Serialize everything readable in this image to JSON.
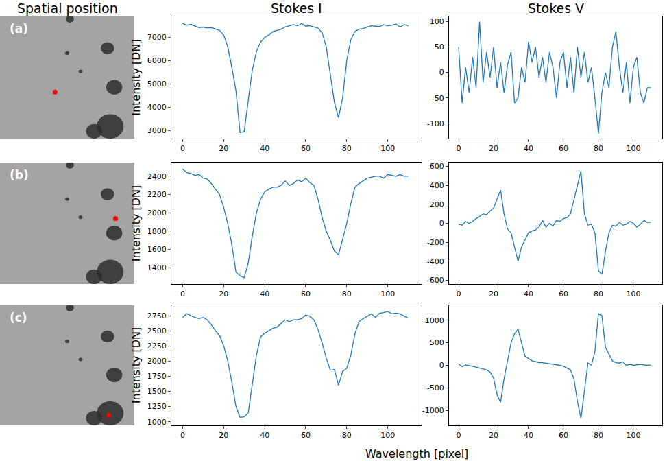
{
  "headers": [
    "Spatial position",
    "Stokes I",
    "Stokes V"
  ],
  "x_label": "Wavelength [pixel]",
  "spatial_panels": [
    {
      "label": "(a)",
      "point": {
        "x": 0.41,
        "y": 0.38
      },
      "color": "red"
    },
    {
      "label": "(b)",
      "point": {
        "x": 0.86,
        "y": 0.54
      },
      "color": "red"
    },
    {
      "label": "(c)",
      "point": {
        "x": 0.81,
        "y": 0.085
      },
      "color": "red"
    }
  ],
  "chart_data": [
    {
      "type": "line",
      "ylabel": "Intensity [DN]",
      "color": "#1f77b4",
      "x": [
        0,
        2,
        4,
        6,
        8,
        10,
        12,
        14,
        16,
        18,
        20,
        22,
        24,
        26,
        28,
        30,
        32,
        34,
        36,
        38,
        40,
        42,
        44,
        46,
        48,
        50,
        52,
        54,
        56,
        58,
        60,
        62,
        64,
        66,
        68,
        70,
        72,
        74,
        76,
        78,
        80,
        82,
        84,
        86,
        88,
        90,
        92,
        94,
        96,
        98,
        100,
        102,
        104,
        106,
        108,
        110
      ],
      "values": [
        7600,
        7520,
        7560,
        7480,
        7420,
        7440,
        7400,
        7420,
        7360,
        7300,
        7100,
        6600,
        5700,
        4700,
        2900,
        2950,
        4300,
        5600,
        6400,
        6800,
        7000,
        7100,
        7250,
        7300,
        7350,
        7450,
        7500,
        7550,
        7500,
        7600,
        7480,
        7500,
        7450,
        7400,
        7200,
        6600,
        5400,
        4200,
        3550,
        4400,
        6000,
        6900,
        7250,
        7350,
        7380,
        7450,
        7500,
        7480,
        7460,
        7550,
        7500,
        7520,
        7580,
        7450,
        7550,
        7500
      ],
      "xlim": [
        -5.5,
        116.5
      ],
      "xticks": [
        0,
        20,
        40,
        60,
        80,
        100
      ],
      "ylim": [
        2650,
        7900
      ],
      "yticks": [
        3000,
        4000,
        5000,
        6000,
        7000
      ]
    },
    {
      "type": "line",
      "color": "#1f77b4",
      "x": [
        0,
        2,
        4,
        6,
        8,
        10,
        12,
        14,
        16,
        18,
        20,
        22,
        24,
        26,
        28,
        30,
        32,
        34,
        36,
        38,
        40,
        42,
        44,
        46,
        48,
        50,
        52,
        54,
        56,
        58,
        60,
        62,
        64,
        66,
        68,
        70,
        72,
        74,
        76,
        78,
        80,
        82,
        84,
        86,
        88,
        90,
        92,
        94,
        96,
        98,
        100,
        102,
        104,
        106,
        108,
        110
      ],
      "values": [
        50,
        -60,
        10,
        -40,
        30,
        -30,
        100,
        -20,
        40,
        -10,
        50,
        -30,
        20,
        -40,
        15,
        40,
        -60,
        -50,
        10,
        -20,
        60,
        20,
        50,
        -10,
        30,
        -20,
        40,
        10,
        -50,
        20,
        40,
        -30,
        30,
        -40,
        50,
        -10,
        40,
        -20,
        10,
        -50,
        -120,
        -40,
        0,
        -30,
        50,
        80,
        10,
        -40,
        20,
        -60,
        10,
        30,
        -40,
        -60,
        -30,
        -30
      ],
      "xlim": [
        -5.5,
        116.5
      ],
      "xticks": [
        0,
        20,
        40,
        60,
        80,
        100
      ],
      "ylim": [
        -130,
        110
      ],
      "yticks": [
        -100,
        -50,
        0,
        50,
        100
      ]
    },
    {
      "type": "line",
      "ylabel": "Intensity [DN]",
      "color": "#1f77b4",
      "x": [
        0,
        2,
        4,
        6,
        8,
        10,
        12,
        14,
        16,
        18,
        20,
        22,
        24,
        26,
        28,
        30,
        32,
        34,
        36,
        38,
        40,
        42,
        44,
        46,
        48,
        50,
        52,
        54,
        56,
        58,
        60,
        62,
        64,
        66,
        68,
        70,
        72,
        74,
        76,
        78,
        80,
        82,
        84,
        86,
        88,
        90,
        92,
        94,
        96,
        98,
        100,
        102,
        104,
        106,
        108,
        110
      ],
      "values": [
        2480,
        2440,
        2430,
        2410,
        2420,
        2380,
        2370,
        2320,
        2260,
        2200,
        2060,
        1880,
        1650,
        1350,
        1310,
        1290,
        1450,
        1750,
        2000,
        2150,
        2230,
        2260,
        2280,
        2280,
        2300,
        2350,
        2300,
        2320,
        2360,
        2340,
        2380,
        2330,
        2300,
        2150,
        1950,
        1800,
        1700,
        1580,
        1540,
        1700,
        1880,
        2100,
        2280,
        2320,
        2350,
        2380,
        2390,
        2400,
        2400,
        2380,
        2420,
        2410,
        2400,
        2420,
        2400,
        2400
      ],
      "xlim": [
        -5.5,
        116.5
      ],
      "xticks": [
        0,
        20,
        40,
        60,
        80,
        100
      ],
      "ylim": [
        1220,
        2550
      ],
      "yticks": [
        1400,
        1600,
        1800,
        2000,
        2200,
        2400
      ]
    },
    {
      "type": "line",
      "color": "#1f77b4",
      "x": [
        0,
        2,
        4,
        6,
        8,
        10,
        12,
        14,
        16,
        18,
        20,
        22,
        24,
        26,
        28,
        30,
        32,
        34,
        36,
        38,
        40,
        42,
        44,
        46,
        48,
        50,
        52,
        54,
        56,
        58,
        60,
        62,
        64,
        66,
        68,
        70,
        72,
        74,
        76,
        78,
        80,
        82,
        84,
        86,
        88,
        90,
        92,
        94,
        96,
        98,
        100,
        102,
        104,
        106,
        108,
        110
      ],
      "values": [
        -10,
        -20,
        20,
        0,
        20,
        50,
        70,
        100,
        90,
        130,
        160,
        250,
        350,
        100,
        -60,
        -100,
        -250,
        -400,
        -250,
        -180,
        -100,
        -80,
        -70,
        -40,
        30,
        -40,
        0,
        -30,
        30,
        20,
        50,
        60,
        100,
        250,
        400,
        550,
        100,
        -20,
        -10,
        -100,
        -500,
        -540,
        -300,
        -100,
        -20,
        -30,
        10,
        -20,
        -10,
        20,
        0,
        -40,
        -10,
        30,
        10,
        10
      ],
      "xlim": [
        -5.5,
        116.5
      ],
      "xticks": [
        0,
        20,
        40,
        60,
        80,
        100
      ],
      "ylim": [
        -640,
        640
      ],
      "yticks": [
        -600,
        -400,
        -200,
        0,
        200,
        400,
        600
      ]
    },
    {
      "type": "line",
      "ylabel": "Intensity [DN]",
      "color": "#1f77b4",
      "x": [
        0,
        2,
        4,
        6,
        8,
        10,
        12,
        14,
        16,
        18,
        20,
        22,
        24,
        26,
        28,
        30,
        32,
        34,
        36,
        38,
        40,
        42,
        44,
        46,
        48,
        50,
        52,
        54,
        56,
        58,
        60,
        62,
        64,
        66,
        68,
        70,
        72,
        74,
        76,
        78,
        80,
        82,
        84,
        86,
        88,
        90,
        92,
        94,
        96,
        98,
        100,
        102,
        104,
        106,
        108,
        110
      ],
      "values": [
        2720,
        2780,
        2750,
        2720,
        2700,
        2720,
        2680,
        2600,
        2500,
        2420,
        2250,
        2000,
        1650,
        1250,
        1070,
        1080,
        1150,
        1650,
        2100,
        2400,
        2460,
        2500,
        2540,
        2560,
        2620,
        2680,
        2650,
        2680,
        2680,
        2700,
        2760,
        2740,
        2680,
        2520,
        2300,
        2050,
        1850,
        1860,
        1600,
        1830,
        1880,
        2100,
        2450,
        2650,
        2700,
        2740,
        2780,
        2720,
        2790,
        2800,
        2820,
        2780,
        2790,
        2780,
        2740,
        2710
      ],
      "xlim": [
        -5.5,
        116.5
      ],
      "xticks": [
        0,
        20,
        40,
        60,
        80,
        100
      ],
      "ylim": [
        940,
        2920
      ],
      "yticks": [
        1000,
        1250,
        1500,
        1750,
        2000,
        2250,
        2500,
        2750
      ]
    },
    {
      "type": "line",
      "color": "#1f77b4",
      "x": [
        0,
        2,
        4,
        6,
        8,
        10,
        12,
        14,
        16,
        18,
        20,
        22,
        24,
        26,
        28,
        30,
        32,
        34,
        36,
        38,
        40,
        42,
        44,
        46,
        48,
        50,
        52,
        54,
        56,
        58,
        60,
        62,
        64,
        66,
        68,
        70,
        72,
        74,
        76,
        78,
        80,
        82,
        84,
        86,
        88,
        90,
        92,
        94,
        96,
        98,
        100,
        102,
        104,
        106,
        108,
        110
      ],
      "values": [
        30,
        -30,
        10,
        0,
        -20,
        -40,
        -60,
        -80,
        -100,
        -150,
        -280,
        -650,
        -820,
        -300,
        100,
        500,
        700,
        800,
        500,
        200,
        150,
        100,
        80,
        60,
        60,
        50,
        40,
        30,
        10,
        0,
        -20,
        -60,
        -100,
        -300,
        -800,
        -1180,
        -600,
        50,
        0,
        300,
        1150,
        1100,
        400,
        250,
        100,
        60,
        50,
        80,
        0,
        20,
        0,
        10,
        20,
        10,
        0,
        10
      ],
      "xlim": [
        -5.5,
        116.5
      ],
      "xticks": [
        0,
        20,
        40,
        60,
        80,
        100
      ],
      "ylim": [
        -1330,
        1330
      ],
      "yticks": [
        -1000,
        -500,
        0,
        500,
        1000
      ]
    }
  ]
}
